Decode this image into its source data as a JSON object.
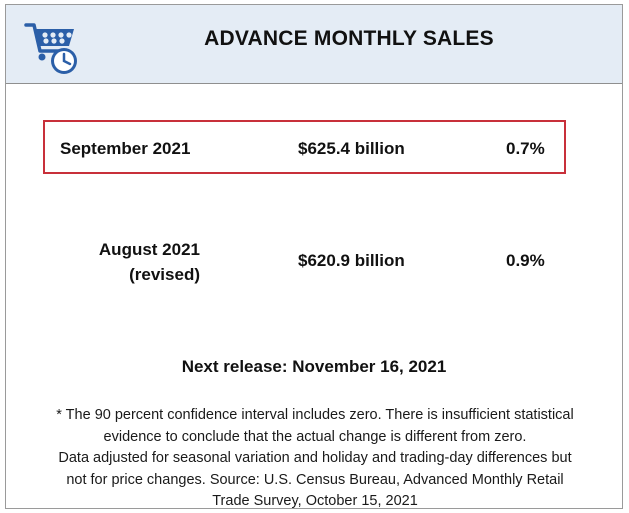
{
  "header": {
    "title": "ADVANCE MONTHLY SALES",
    "logo_icon": "shopping-cart-clock-icon",
    "accent_color": "#2b5fa8",
    "background_color": "#e4ecf5"
  },
  "rows": [
    {
      "period": "September 2021",
      "amount": "$625.4 billion",
      "change": "0.7%",
      "highlighted": true
    },
    {
      "period_line1": "August 2021",
      "period_line2": "(revised)",
      "amount": "$620.9 billion",
      "change": "0.9%",
      "highlighted": false
    }
  ],
  "highlight_color": "#c8303a",
  "next_release": "Next release: November 16, 2021",
  "footnote": {
    "line1": "* The 90 percent confidence interval includes zero. There is insufficient statistical",
    "line2": "evidence to conclude that the actual change is different from zero.",
    "line3": "Data adjusted for seasonal variation and holiday and trading-day differences but",
    "line4": "not for price changes. Source: U.S. Census Bureau, Advanced Monthly Retail",
    "line5": "Trade Survey, October 15, 2021"
  }
}
